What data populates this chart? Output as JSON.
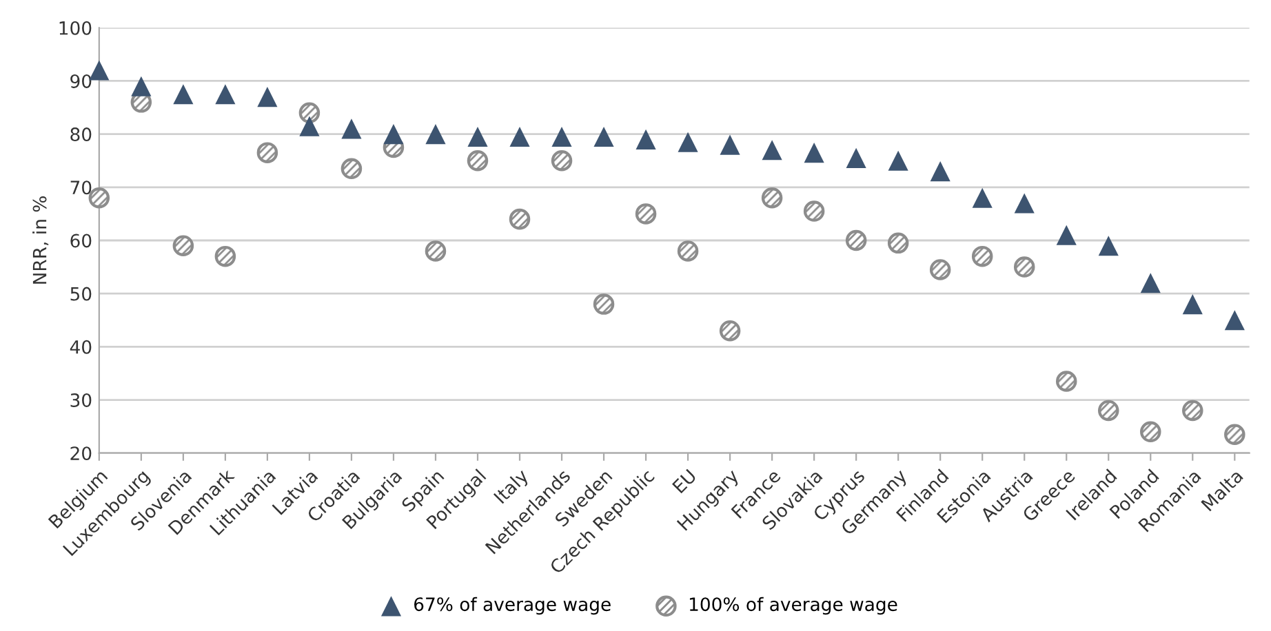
{
  "chart_data": {
    "type": "scatter",
    "ylabel": "NRR, in %",
    "categories": [
      "Belgium",
      "Luxembourg",
      "Slovenia",
      "Denmark",
      "Lithuania",
      "Latvia",
      "Croatia",
      "Bulgaria",
      "Spain",
      "Portugal",
      "Italy",
      "Netherlands",
      "Sweden",
      "Czech Republic",
      "EU",
      "Hungary",
      "France",
      "Slovakia",
      "Cyprus",
      "Germany",
      "Finland",
      "Estonia",
      "Austria",
      "Greece",
      "Ireland",
      "Poland",
      "Romania",
      "Malta"
    ],
    "series": [
      {
        "name": "67% of average wage",
        "color": "#3d5470",
        "marker": "triangle",
        "values": [
          92,
          89,
          87.5,
          87.5,
          87,
          81.5,
          81,
          80,
          80,
          79.5,
          79.5,
          79.5,
          79.5,
          79,
          78.5,
          78,
          77,
          76.5,
          75.5,
          75,
          73,
          68,
          67,
          61,
          59,
          52,
          48,
          45
        ]
      },
      {
        "name": "100% of average wage",
        "color": "#8c8c8c",
        "marker": "circle",
        "values": [
          68,
          86,
          59,
          57,
          76.5,
          84,
          73.5,
          77.5,
          58,
          75,
          64,
          75,
          48,
          65,
          58,
          43,
          68,
          65.5,
          60,
          59.5,
          54.5,
          57,
          55,
          33.5,
          28,
          24,
          28,
          23.5
        ]
      }
    ],
    "ylim": [
      20,
      100
    ],
    "yticks": [
      20,
      30,
      40,
      50,
      60,
      70,
      80,
      90,
      100
    ],
    "grid": "y",
    "legend": "bottom"
  }
}
